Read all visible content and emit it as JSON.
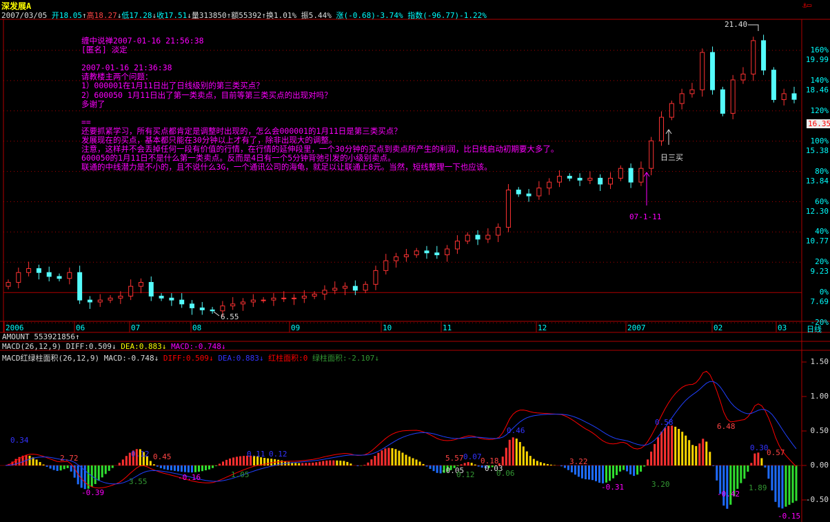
{
  "title": "深发展A",
  "info": {
    "date": "2007/03/05",
    "open": "开18.05",
    "high": "高18.27",
    "low": "低17.28",
    "close": "收17.51",
    "volume": "量313850",
    "amount": "额55392",
    "turnover": "换1.01%",
    "amplitude": "振5.44%",
    "change": "涨(-0.68)-3.74%",
    "index": "指数(-96.77)-1.22%"
  },
  "post": {
    "lines": [
      "缠中说禅2007-01-16 21:56:38",
      "[匿名] 淡定",
      "",
      "2007-01-16 21:36:38",
      "请教楼主两个问题：",
      "1）000001在1月11日出了日线级别的第三类买点？",
      "2）600050 1月11日出了第一类卖点，目前等第三类买点的出现对吗？",
      "多谢了",
      "",
      "==",
      "还要抓紧学习，所有买点都肯定是调整时出现的，怎么会000001的1月11日是第三类买点？",
      "发展现在的买点，基本都只能在30分钟以上才有了，除非出现大的调整。",
      "注意，这样并不会丢掉任何一段有价值的行情，在行情的延伸段里，一个30分钟的买点到卖点所产生的利润，比日线启动初期要大多了。",
      "600050的1月11日不是什么第一类卖点。反而是4日有一个5分钟背弛引发的小级别卖点。",
      "联通的中线潜力是不小的，且不说什么3G，一个通讯公司的海龟，就足以让联通上8元。当然，短线整理一下也应该。"
    ]
  },
  "annotations": {
    "high": "21.40",
    "low": "6.55",
    "date_mark": "07-1-11",
    "buy3": "日三买"
  },
  "current_price": "16.35",
  "period": "日线",
  "amount_line": "AMOUNT 553921856↑",
  "macd_line": {
    "name": "MACD(26,12,9)",
    "diff": "DIFF:0.509↓",
    "dea": "DEA:0.883↓",
    "macd": "MACD:-0.748↓"
  },
  "macd_area_line": {
    "name": "MACD红绿柱面积(26,12,9)",
    "macd": "MACD:-0.748↓",
    "diff": "DIFF:0.509↓",
    "dea": "DEA:0.883↓",
    "red_area": "红柱面积:0",
    "green_area": "绿柱面积:-2.107↓"
  },
  "colors": {
    "up": "#ff3333",
    "down": "#54fcfc",
    "grid": "#b00000",
    "diff": "#ff0000",
    "dea": "#2040ff"
  },
  "chart_data": {
    "type": "candlestick+macd",
    "x_ticks": [
      "2006",
      "06",
      "07",
      "08",
      "09",
      "10",
      "11",
      "12",
      "2007",
      "02",
      "03"
    ],
    "y_ticks_pct": [
      "160%",
      "140%",
      "120%",
      "100%",
      "80%",
      "60%",
      "40%",
      "20%",
      "0%",
      "-20%"
    ],
    "y_ticks_price": [
      "19.99",
      "18.46",
      "",
      "15.38",
      "13.84",
      "12.30",
      "10.77",
      "9.23",
      "7.69",
      ""
    ],
    "closes": [
      8.2,
      8.7,
      8.9,
      8.7,
      8.5,
      8.4,
      8.7,
      7.3,
      7.2,
      7.3,
      7.4,
      7.5,
      8.0,
      8.2,
      7.5,
      7.4,
      7.3,
      7.1,
      6.9,
      6.8,
      6.75,
      7.0,
      7.1,
      7.2,
      7.3,
      7.3,
      7.4,
      7.4,
      7.4,
      7.5,
      7.6,
      7.8,
      7.9,
      8.0,
      7.8,
      8.1,
      8.8,
      9.3,
      9.5,
      9.6,
      9.8,
      9.7,
      9.6,
      9.9,
      10.3,
      10.6,
      10.4,
      10.6,
      11.0,
      12.9,
      12.7,
      12.6,
      13.0,
      13.3,
      13.6,
      13.5,
      13.4,
      13.5,
      13.2,
      13.5,
      14.0,
      13.3,
      14.0,
      15.4,
      16.6,
      17.3,
      17.8,
      18.0,
      19.9,
      18.0,
      16.8,
      18.5,
      18.8,
      20.5,
      19.0,
      17.5,
      17.8,
      17.51
    ],
    "macd_ticks": [
      "1.50",
      "1.00",
      "0.50",
      "0.00",
      "-0.50"
    ],
    "macd_area_labels": [
      "0.34",
      "2.72",
      "-0.39",
      "3.55",
      "0.12",
      "0.45",
      "-0.16",
      "1.05",
      "0.11",
      "0.12",
      "5.57",
      "-0.05",
      "0.07",
      "0.12",
      "0.18",
      "0.03",
      "0.06",
      "0.46",
      "3.22",
      "-0.31",
      "0.58",
      "3.20",
      "6.48",
      "-0.42",
      "0.30",
      "0.57",
      "1.89",
      "-0.15"
    ]
  }
}
